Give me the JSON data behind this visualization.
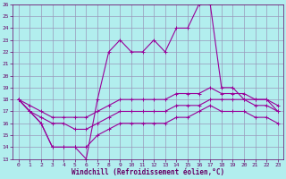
{
  "xlabel": "Windchill (Refroidissement éolien,°C)",
  "xlim": [
    -0.5,
    23.5
  ],
  "ylim": [
    13,
    26
  ],
  "xticks": [
    0,
    1,
    2,
    3,
    4,
    5,
    6,
    7,
    8,
    9,
    10,
    11,
    12,
    13,
    14,
    15,
    16,
    17,
    18,
    19,
    20,
    21,
    22,
    23
  ],
  "yticks": [
    13,
    14,
    15,
    16,
    17,
    18,
    19,
    20,
    21,
    22,
    23,
    24,
    25,
    26
  ],
  "bg_color": "#b2eeee",
  "grid_color": "#9999bb",
  "line_color": "#990099",
  "tick_color": "#660066",
  "lines": [
    {
      "x": [
        0,
        1,
        2,
        3,
        4,
        5,
        6,
        7,
        8,
        9,
        10,
        11,
        12,
        13,
        14,
        15,
        16,
        17,
        18,
        19,
        20,
        21,
        22,
        23
      ],
      "y": [
        18,
        17,
        16,
        14,
        14,
        14,
        13,
        18,
        22,
        23,
        22,
        22,
        23,
        22,
        24,
        24,
        26,
        26,
        19,
        19,
        18,
        18,
        18,
        17
      ]
    },
    {
      "x": [
        0,
        1,
        2,
        3,
        4,
        5,
        6,
        7,
        8,
        9,
        10,
        11,
        12,
        13,
        14,
        15,
        16,
        17,
        18,
        19,
        20,
        21,
        22,
        23
      ],
      "y": [
        18,
        17.5,
        17,
        16.5,
        16.5,
        16.5,
        16.5,
        17,
        17.5,
        18,
        18,
        18,
        18,
        18,
        18.5,
        18.5,
        18.5,
        19,
        18.5,
        18.5,
        18.5,
        18,
        18,
        17.5
      ]
    },
    {
      "x": [
        0,
        1,
        2,
        3,
        4,
        5,
        6,
        7,
        8,
        9,
        10,
        11,
        12,
        13,
        14,
        15,
        16,
        17,
        18,
        19,
        20,
        21,
        22,
        23
      ],
      "y": [
        18,
        17,
        16.5,
        16,
        16,
        15.5,
        15.5,
        16,
        16.5,
        17,
        17,
        17,
        17,
        17,
        17.5,
        17.5,
        17.5,
        18,
        18,
        18,
        18,
        17.5,
        17.5,
        17
      ]
    },
    {
      "x": [
        0,
        1,
        2,
        3,
        4,
        5,
        6,
        7,
        8,
        9,
        10,
        11,
        12,
        13,
        14,
        15,
        16,
        17,
        18,
        19,
        20,
        21,
        22,
        23
      ],
      "y": [
        18,
        17,
        16,
        14,
        14,
        14,
        14,
        15,
        15.5,
        16,
        16,
        16,
        16,
        16,
        16.5,
        16.5,
        17,
        17.5,
        17,
        17,
        17,
        16.5,
        16.5,
        16
      ]
    }
  ]
}
